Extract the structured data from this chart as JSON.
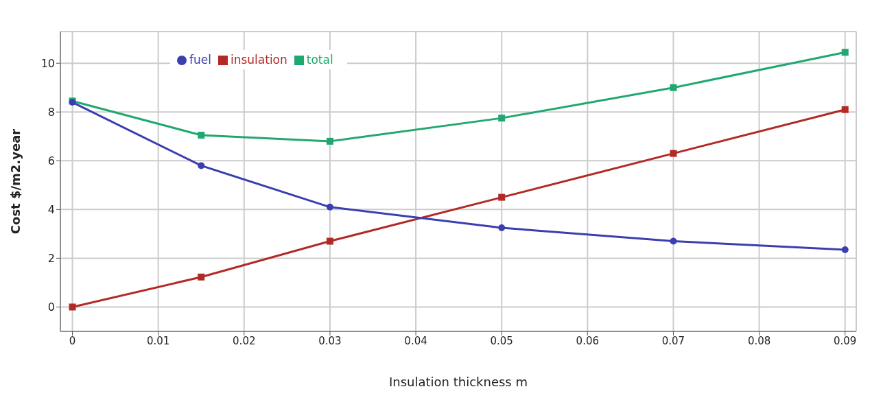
{
  "chart_data": {
    "type": "line",
    "xlabel": "Insulation thickness m",
    "ylabel": "Cost $/m2.year",
    "x": [
      0,
      0.015,
      0.03,
      0.05,
      0.07,
      0.09
    ],
    "series": [
      {
        "name": "fuel",
        "color": "#3a3fb0",
        "marker": "circle",
        "values": [
          8.4,
          5.8,
          4.1,
          3.25,
          2.7,
          2.35
        ]
      },
      {
        "name": "insulation",
        "color": "#b22a26",
        "marker": "square",
        "values": [
          0,
          1.23,
          2.7,
          4.5,
          6.3,
          8.1
        ]
      },
      {
        "name": "total",
        "color": "#20a870",
        "marker": "square",
        "values": [
          8.45,
          7.05,
          6.8,
          7.75,
          9.0,
          10.45
        ]
      }
    ],
    "xlim": [
      -0.0014,
      0.0913
    ],
    "xticks": [
      0,
      0.01,
      0.02,
      0.03,
      0.04,
      0.05,
      0.06,
      0.07,
      0.08,
      0.09
    ],
    "ylim": [
      -1,
      11.3
    ],
    "yticks": [
      0,
      2,
      4,
      6,
      8,
      10
    ],
    "grid": true,
    "legend": "top left"
  }
}
